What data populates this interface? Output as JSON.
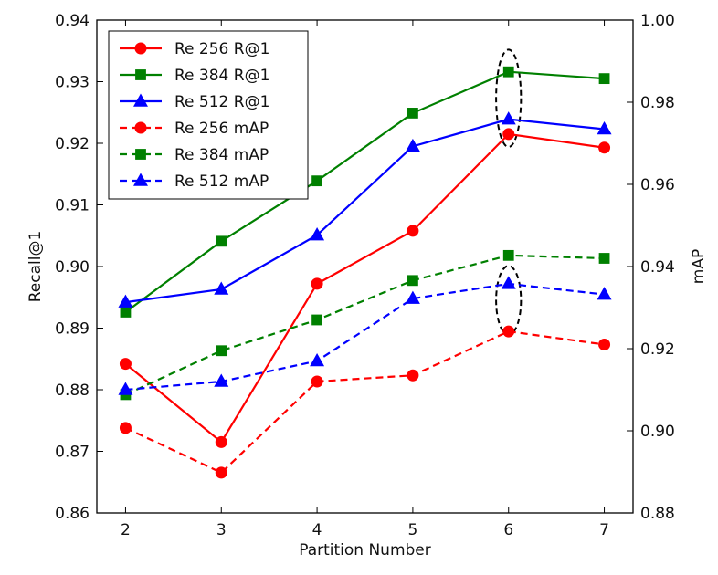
{
  "chart_data": {
    "type": "line",
    "xlabel": "Partition Number",
    "ylabel_left": "Recall@1",
    "ylabel_right": "mAP",
    "x": [
      2,
      3,
      4,
      5,
      6,
      7
    ],
    "xticks": [
      "2",
      "3",
      "4",
      "5",
      "6",
      "7"
    ],
    "xlim": [
      1.7,
      7.3
    ],
    "ylim_left": [
      0.86,
      0.94
    ],
    "yticks_left": [
      "0.86",
      "0.87",
      "0.88",
      "0.89",
      "0.90",
      "0.91",
      "0.92",
      "0.93",
      "0.94"
    ],
    "ylim_right": [
      0.88,
      1.0
    ],
    "yticks_right": [
      "0.88",
      "0.90",
      "0.92",
      "0.94",
      "0.96",
      "0.98",
      "1.00"
    ],
    "legend_position": "top-left",
    "series": [
      {
        "name": "Re 256 R@1",
        "axis": "left",
        "color": "#ff0000",
        "marker": "circle",
        "dash": "solid",
        "values": [
          0.8842,
          0.8715,
          0.8972,
          0.9058,
          0.9215,
          0.9193
        ]
      },
      {
        "name": "Re 384 R@1",
        "axis": "left",
        "color": "#008000",
        "marker": "square",
        "dash": "solid",
        "values": [
          0.8926,
          0.9041,
          0.9139,
          0.9249,
          0.9316,
          0.9305
        ]
      },
      {
        "name": "Re 512 R@1",
        "axis": "left",
        "color": "#0000ff",
        "marker": "triangle",
        "dash": "solid",
        "values": [
          0.8942,
          0.8963,
          0.9051,
          0.9195,
          0.9239,
          0.9223
        ]
      },
      {
        "name": "Re 256 mAP",
        "axis": "right",
        "color": "#ff0000",
        "marker": "circle",
        "dash": "dashed",
        "values": [
          0.9007,
          0.8898,
          0.912,
          0.9135,
          0.9242,
          0.921
        ]
      },
      {
        "name": "Re 384 mAP",
        "axis": "right",
        "color": "#008000",
        "marker": "square",
        "dash": "dashed",
        "values": [
          0.9088,
          0.9195,
          0.927,
          0.9366,
          0.9427,
          0.942
        ]
      },
      {
        "name": "Re 512 mAP",
        "axis": "right",
        "color": "#0000ff",
        "marker": "triangle",
        "dash": "dashed",
        "values": [
          0.91,
          0.912,
          0.917,
          0.9322,
          0.9358,
          0.9332
        ]
      }
    ],
    "annotations": [
      {
        "type": "dashed-ellipse",
        "x": 6,
        "axis": "left",
        "y_center": 0.9273,
        "x_half_width": 0.13,
        "y_half_height": 0.0079
      },
      {
        "type": "dashed-ellipse",
        "x": 6,
        "axis": "left",
        "y_center": 0.8945,
        "x_half_width": 0.13,
        "y_half_height": 0.0056
      }
    ]
  }
}
